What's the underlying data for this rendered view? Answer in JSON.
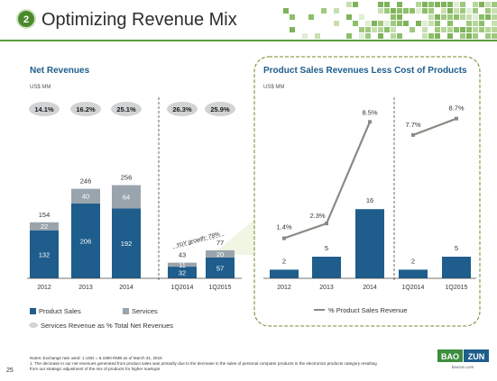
{
  "slide": {
    "number_badge": "2",
    "title": "Optimizing Revenue Mix",
    "page_number": "25"
  },
  "colors": {
    "product": "#1e5d8c",
    "services": "#9aa4ad",
    "line": "#8c8984",
    "pill": "#d1d3d4",
    "accent": "#3d8d3f",
    "highlight_fill": "#e4efcc"
  },
  "chart_data": [
    {
      "type": "bar",
      "stacked": true,
      "title": "Net Revenues",
      "unit": "US$ MM",
      "categories": [
        "2012",
        "2013",
        "2014",
        "1Q2014",
        "1Q2015"
      ],
      "series": [
        {
          "name": "Product Sales",
          "values": [
            132,
            206,
            192,
            32,
            57
          ]
        },
        {
          "name": "Services",
          "values": [
            22,
            40,
            64,
            11,
            20
          ]
        }
      ],
      "totals": [
        154,
        246,
        256,
        43,
        77
      ],
      "services_pct_labels": [
        "14.1%",
        "16.2%",
        "25.1%",
        "26.3%",
        "25.9%"
      ],
      "series_pct_name": "Services Revenue as % Total Net Revenues",
      "annotation": "YoY growth: 78%",
      "legend": [
        "Product Sales",
        "Services",
        "Services Revenue as % Total Net Revenues"
      ],
      "legend_position": "bottom",
      "ylim": [
        0,
        300
      ],
      "grid": false
    },
    {
      "type": "bar",
      "title": "Product Sales Revenues Less Cost of Products",
      "unit": "US$ MM",
      "categories": [
        "2012",
        "2013",
        "2014",
        "1Q2014",
        "1Q2015"
      ],
      "values": [
        2,
        5,
        16,
        2,
        5
      ],
      "line_series": {
        "name": "% Product Sales Revenue",
        "values": [
          1.4,
          2.3,
          8.5,
          7.7,
          8.7
        ],
        "labels": [
          "1.4%",
          "2.3%",
          "8.5%",
          "7.7%",
          "8.7%"
        ]
      },
      "legend": [
        "% Product Sales Revenue"
      ],
      "legend_position": "bottom",
      "ylim": [
        0,
        30
      ],
      "grid": false
    }
  ],
  "notes": {
    "line1": "Notes: Exchange rate used: 1 USD = 6.1990 RMB as of March 31, 2015",
    "line2": "1. The decrease in our net revenues generated from product sales was primarily due to the decrease in the sales of personal computer products in the electronics products category resulting",
    "line3": "from our strategic adjustment of the mix of products for higher markups"
  },
  "logo": {
    "left": "BAO",
    "right": "ZUN",
    "domain": "baozun.com"
  }
}
